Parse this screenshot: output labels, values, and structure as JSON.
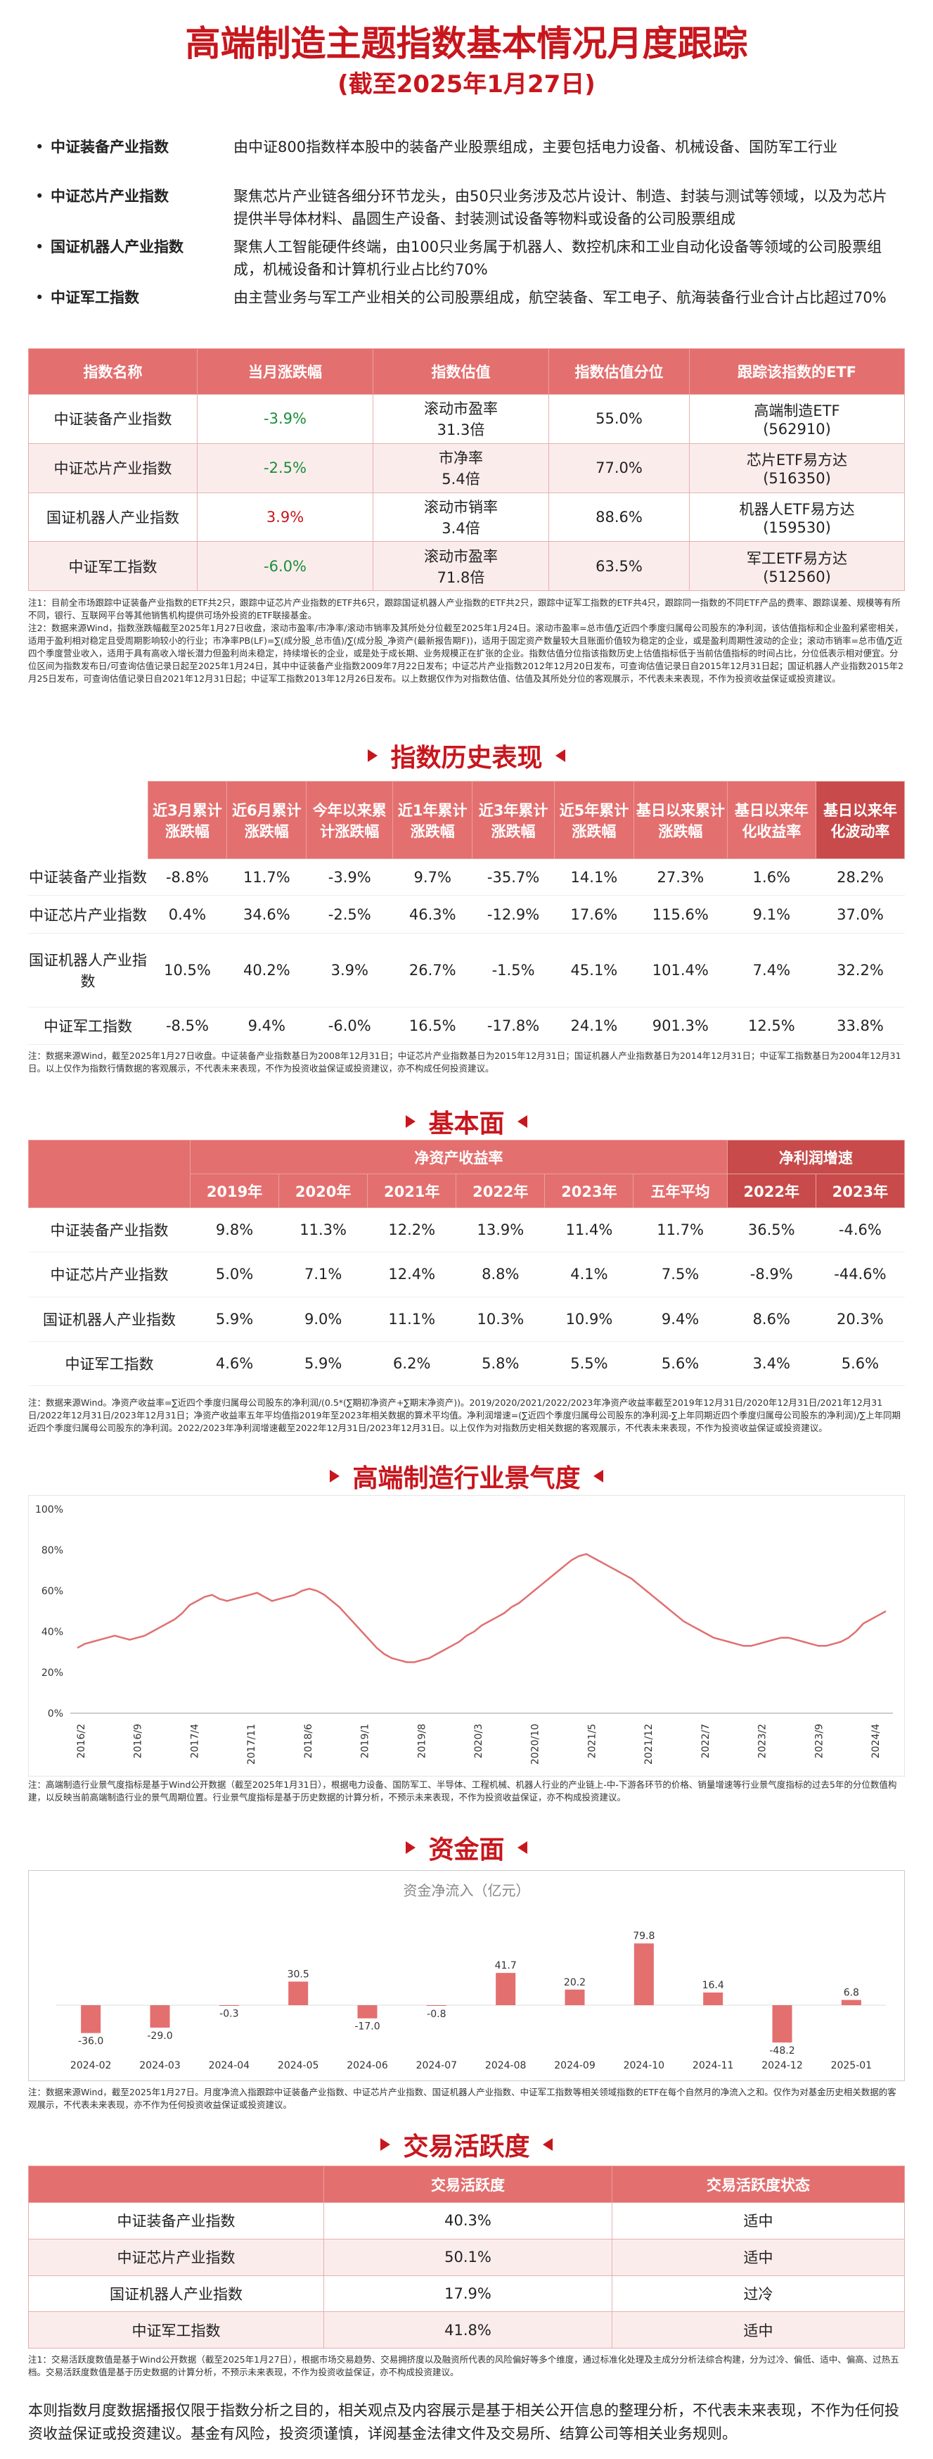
{
  "header": {
    "title": "高端制造主题指数基本情况月度跟踪",
    "subtitle": "(截至2025年1月27日)"
  },
  "intro": [
    {
      "name": "中证装备产业指数",
      "desc": "由中证800指数样本股中的装备产业股票组成，主要包括电力设备、机械设备、国防军工行业"
    },
    {
      "name": "中证芯片产业指数",
      "desc": "聚焦芯片产业链各细分环节龙头，由50只业务涉及芯片设计、制造、封装与测试等领域，以及为芯片提供半导体材料、晶圆生产设备、封装测试设备等物料或设备的公司股票组成"
    },
    {
      "name": "国证机器人产业指数",
      "desc": "聚焦人工智能硬件终端，由100只业务属于机器人、数控机床和工业自动化设备等领域的公司股票组成，机械设备和计算机行业占比约70%"
    },
    {
      "name": "中证军工指数",
      "desc": "由主营业务与军工产业相关的公司股票组成，航空装备、军工电子、航海装备行业合计占比超过70%"
    }
  ],
  "valuation": {
    "headers": [
      "指数名称",
      "当月涨跌幅",
      "指数估值",
      "指数估值分位",
      "跟踪该指数的ETF"
    ],
    "rows": [
      {
        "name": "中证装备产业指数",
        "chg": "-3.9%",
        "val1": "滚动市盈率",
        "val2": "31.3倍",
        "pct": "55.0%",
        "etf1": "高端制造ETF",
        "etf2": "(562910)"
      },
      {
        "name": "中证芯片产业指数",
        "chg": "-2.5%",
        "val1": "市净率",
        "val2": "5.4倍",
        "pct": "77.0%",
        "etf1": "芯片ETF易方达",
        "etf2": "(516350)"
      },
      {
        "name": "国证机器人产业指数",
        "chg": "3.9%",
        "val1": "滚动市销率",
        "val2": "3.4倍",
        "pct": "88.6%",
        "etf1": "机器人ETF易方达",
        "etf2": "(159530)"
      },
      {
        "name": "中证军工指数",
        "chg": "-6.0%",
        "val1": "滚动市盈率",
        "val2": "71.8倍",
        "pct": "63.5%",
        "etf1": "军工ETF易方达",
        "etf2": "(512560)"
      }
    ],
    "note": "注1：目前全市场跟踪中证装备产业指数的ETF共2只，跟踪中证芯片产业指数的ETF共6只，跟踪国证机器人产业指数的ETF共2只，跟踪中证军工指数的ETF共4只，跟踪同一指数的不同ETF产品的费率、跟踪误差、规模等有所不同，银行、互联网平台等其他销售机构提供可场外投资的ETF联接基金。\n注2：数据来源Wind，指数涨跌幅截至2025年1月27日收盘，滚动市盈率/市净率/滚动市销率及其所处分位截至2025年1月24日。滚动市盈率=总市值/∑近四个季度归属母公司股东的净利润，该估值指标和企业盈利紧密相关，适用于盈利相对稳定且受周期影响较小的行业；市净率PB(LF)=∑(成分股_总市值)/∑(成分股_净资产(最新报告期F))，适用于固定资产数量较大且账面价值较为稳定的企业，或是盈利周期性波动的企业；滚动市销率=总市值/∑近四个季度营业收入，适用于具有高收入增长潜力但盈利尚未稳定，持续增长的企业，或是处于成长期、业务规模正在扩张的企业。指数估值分位指该指数历史上估值指标低于当前估值指标的时间占比，分位低表示相对便宜。分位区间为指数发布日/可查询估值记录日起至2025年1月24日，其中中证装备产业指数2009年7月22日发布；中证芯片产业指数2012年12月20日发布，可查询估值记录日自2015年12月31日起；国证机器人产业指数2015年2月25日发布，可查询估值记录日自2021年12月31日起；中证军工指数2013年12月26日发布。以上数据仅作为对指数估值、估值及其所处分位的客观展示，不代表未来表现，不作为投资收益保证或投资建议。"
  },
  "history": {
    "title": "指数历史表现",
    "headers": [
      "",
      "近3月累计涨跌幅",
      "近6月累计涨跌幅",
      "今年以来累计涨跌幅",
      "近1年累计涨跌幅",
      "近3年累计涨跌幅",
      "近5年累计涨跌幅",
      "基日以来累计涨跌幅",
      "基日以来年化收益率",
      "基日以来年化波动率"
    ],
    "rows": [
      {
        "name": "中证装备产业指数",
        "v": [
          "-8.8%",
          "11.7%",
          "-3.9%",
          "9.7%",
          "-35.7%",
          "14.1%",
          "27.3%",
          "1.6%",
          "28.2%"
        ]
      },
      {
        "name": "中证芯片产业指数",
        "v": [
          "0.4%",
          "34.6%",
          "-2.5%",
          "46.3%",
          "-12.9%",
          "17.6%",
          "115.6%",
          "9.1%",
          "37.0%"
        ]
      },
      {
        "name": "国证机器人产业指数",
        "v": [
          "10.5%",
          "40.2%",
          "3.9%",
          "26.7%",
          "-1.5%",
          "45.1%",
          "101.4%",
          "7.4%",
          "32.2%"
        ]
      },
      {
        "name": "中证军工指数",
        "v": [
          "-8.5%",
          "9.4%",
          "-6.0%",
          "16.5%",
          "-17.8%",
          "24.1%",
          "901.3%",
          "12.5%",
          "33.8%"
        ]
      }
    ],
    "note": "注：数据来源Wind，截至2025年1月27日收盘。中证装备产业指数基日为2008年12月31日；中证芯片产业指数基日为2015年12月31日；国证机器人产业指数基日为2014年12月31日；中证军工指数基日为2004年12月31日。以上仅作为指数行情数据的客观展示，不代表未来表现，不作为投资收益保证或投资建议，亦不构成任何投资建议。"
  },
  "fundamentals": {
    "title": "基本面",
    "group1": "净资产收益率",
    "group2": "净利润增速",
    "years": [
      "2019年",
      "2020年",
      "2021年",
      "2022年",
      "2023年",
      "五年平均",
      "2022年",
      "2023年"
    ],
    "rows": [
      {
        "name": "中证装备产业指数",
        "v": [
          "9.8%",
          "11.3%",
          "12.2%",
          "13.9%",
          "11.4%",
          "11.7%",
          "36.5%",
          "-4.6%"
        ]
      },
      {
        "name": "中证芯片产业指数",
        "v": [
          "5.0%",
          "7.1%",
          "12.4%",
          "8.8%",
          "4.1%",
          "7.5%",
          "-8.9%",
          "-44.6%"
        ]
      },
      {
        "name": "国证机器人产业指数",
        "v": [
          "5.9%",
          "9.0%",
          "11.1%",
          "10.3%",
          "10.9%",
          "9.4%",
          "8.6%",
          "20.3%"
        ]
      },
      {
        "name": "中证军工指数",
        "v": [
          "4.6%",
          "5.9%",
          "6.2%",
          "5.8%",
          "5.5%",
          "5.6%",
          "3.4%",
          "5.6%"
        ]
      }
    ],
    "note": "注：数据来源Wind。净资产收益率=∑近四个季度归属母公司股东的净利润/(0.5*(∑期初净资产+∑期末净资产))。2019/2020/2021/2022/2023年净资产收益率截至2019年12月31日/2020年12月31日/2021年12月31日/2022年12月31日/2023年12月31日；净资产收益率五年平均值指2019年至2023年相关数据的算术平均值。净利润增速=(∑近四个季度归属母公司股东的净利润-∑上年同期近四个季度归属母公司股东的净利润)/∑上年同期近四个季度归属母公司股东的净利润。2022/2023年净利润增速截至2022年12月31日/2023年12月31日。以上仅作为对指数历史相关数据的客观展示，不代表未来表现，不作为投资收益保证或投资建议。"
  },
  "prosperity": {
    "title": "高端制造行业景气度",
    "note": "注：高端制造行业景气度指标是基于Wind公开数据（截至2025年1月31日），根据电力设备、国防军工、半导体、工程机械、机器人行业的产业链上-中-下游各环节的价格、销量增速等行业景气度指标的过去5年的分位数值构建，以反映当前高端制造行业的景气周期位置。行业景气度指标是基于历史数据的计算分析，不预示未来表现，不作为投资收益保证，亦不构成投资建议。"
  },
  "flow": {
    "title": "资金面",
    "chart_title": "资金净流入（亿元）",
    "note": "注：数据来源Wind，截至2025年1月27日。月度净流入指跟踪中证装备产业指数、中证芯片产业指数、国证机器人产业指数、中证军工指数等相关领域指数的ETF在每个自然月的净流入之和。仅作为对基金历史相关数据的客观展示，不代表未来表现，亦不作为任何投资收益保证或投资建议。"
  },
  "activity": {
    "title": "交易活跃度",
    "headers": [
      "",
      "交易活跃度",
      "交易活跃度状态"
    ],
    "rows": [
      {
        "name": "中证装备产业指数",
        "v": "40.3%",
        "s": "适中"
      },
      {
        "name": "中证芯片产业指数",
        "v": "50.1%",
        "s": "适中"
      },
      {
        "name": "国证机器人产业指数",
        "v": "17.9%",
        "s": "过冷"
      },
      {
        "name": "中证军工指数",
        "v": "41.8%",
        "s": "适中"
      }
    ],
    "note": "注1：交易活跃度数值是基于Wind公开数据（截至2025年1月27日），根据市场交易趋势、交易拥挤度以及融资所代表的风险偏好等多个维度，通过标准化处理及主成分分析法综合构建，分为过冷、偏低、适中、偏高、过热五档。交易活跃度数值是基于历史数据的计算分析，不预示未来表现，不作为投资收益保证，亦不构成投资建议。"
  },
  "footer": "本则指数月度数据播报仅限于指数分析之目的，相关观点及内容展示是基于相关公开信息的整理分析，不代表未来表现，不作为任何投资收益保证或投资建议。基金有风险，投资须谨慎，详阅基金法律文件及交易所、结算公司等相关业务规则。",
  "chart_data": [
    {
      "type": "line",
      "title": "",
      "ylim": [
        0,
        100
      ],
      "yticks": [
        "0%",
        "20%",
        "40%",
        "60%",
        "80%",
        "100%"
      ],
      "xticks": [
        "2016/2",
        "2016/9",
        "2017/4",
        "2017/11",
        "2018/6",
        "2019/1",
        "2019/8",
        "2020/3",
        "2020/10",
        "2021/5",
        "2021/12",
        "2022/7",
        "2023/2",
        "2023/9",
        "2024/4"
      ],
      "values": [
        32,
        34,
        35,
        36,
        37,
        38,
        37,
        36,
        37,
        38,
        40,
        42,
        44,
        46,
        49,
        53,
        55,
        57,
        58,
        56,
        55,
        56,
        57,
        58,
        59,
        57,
        55,
        56,
        57,
        58,
        60,
        61,
        60,
        58,
        55,
        52,
        48,
        44,
        40,
        36,
        32,
        29,
        27,
        26,
        25,
        25,
        26,
        27,
        29,
        31,
        33,
        35,
        38,
        40,
        43,
        45,
        47,
        49,
        52,
        54,
        57,
        60,
        63,
        66,
        69,
        72,
        75,
        77,
        78,
        76,
        74,
        72,
        70,
        68,
        66,
        63,
        60,
        57,
        54,
        51,
        48,
        45,
        43,
        41,
        39,
        37,
        36,
        35,
        34,
        33,
        33,
        34,
        35,
        36,
        37,
        37,
        36,
        35,
        34,
        33,
        33,
        34,
        35,
        37,
        40,
        44,
        46,
        48,
        50
      ]
    },
    {
      "type": "bar",
      "title": "资金净流入（亿元）",
      "categories": [
        "2024-02",
        "2024-03",
        "2024-04",
        "2024-05",
        "2024-06",
        "2024-07",
        "2024-08",
        "2024-09",
        "2024-10",
        "2024-11",
        "2024-12",
        "2025-01"
      ],
      "values": [
        -36.0,
        -29.0,
        -0.3,
        30.5,
        -17.0,
        -0.8,
        41.7,
        20.2,
        79.8,
        16.4,
        -48.2,
        6.8
      ]
    }
  ],
  "colors": {
    "accent": "#c8161d",
    "header_bg": "#e46f6f",
    "line": "#e07070",
    "bar": "#e46f6f"
  }
}
